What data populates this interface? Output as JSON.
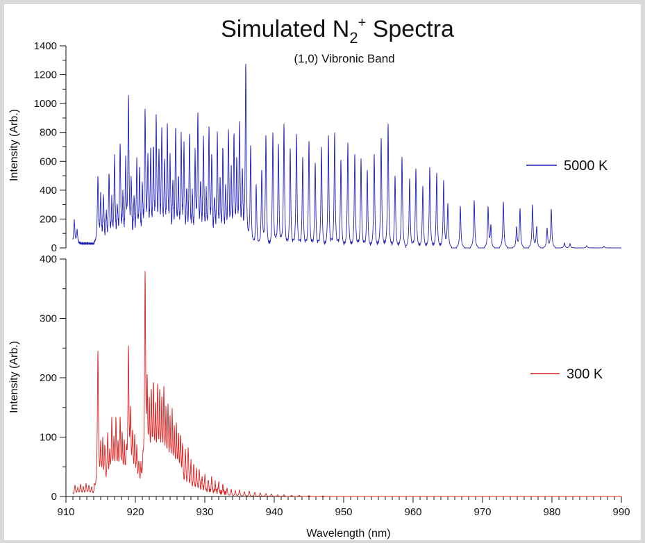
{
  "chart_data": [
    {
      "type": "line",
      "panel": "top",
      "title_main": "Simulated N",
      "title_sub": "2",
      "title_sup": "+",
      "title_tail": " Spectra",
      "subtitle": "(1,0) Vibronic Band",
      "ylabel": "Intensity (Arb.)",
      "xlim": [
        910,
        990
      ],
      "ylim": [
        0,
        1400
      ],
      "y_ticks": [
        "0",
        "200",
        "400",
        "600",
        "800",
        "1000",
        "1200",
        "1400"
      ],
      "series": [
        {
          "name": "5000 K",
          "color": "#1f1fb4",
          "baseline_band": [
            911,
            914.6,
            35
          ],
          "peaks": [
            [
              911.2,
              160
            ],
            [
              911.6,
              90
            ],
            [
              914.6,
              450
            ],
            [
              915.0,
              300
            ],
            [
              915.4,
              330
            ],
            [
              915.8,
              200
            ],
            [
              916.2,
              470
            ],
            [
              916.6,
              260
            ],
            [
              917.0,
              580
            ],
            [
              917.4,
              230
            ],
            [
              917.8,
              690
            ],
            [
              918.2,
              300
            ],
            [
              918.6,
              520
            ],
            [
              919.0,
              990
            ],
            [
              919.4,
              420
            ],
            [
              919.8,
              300
            ],
            [
              920.2,
              540
            ],
            [
              920.6,
              480
            ],
            [
              921.0,
              360
            ],
            [
              921.4,
              910
            ],
            [
              921.8,
              560
            ],
            [
              922.2,
              600
            ],
            [
              922.6,
              610
            ],
            [
              923.0,
              840
            ],
            [
              923.4,
              600
            ],
            [
              923.8,
              760
            ],
            [
              924.2,
              510
            ],
            [
              924.6,
              780
            ],
            [
              925.0,
              560
            ],
            [
              925.4,
              400
            ],
            [
              925.8,
              780
            ],
            [
              926.2,
              400
            ],
            [
              926.6,
              700
            ],
            [
              927.0,
              650
            ],
            [
              927.4,
              340
            ],
            [
              927.8,
              750
            ],
            [
              928.2,
              300
            ],
            [
              928.6,
              580
            ],
            [
              929.0,
              870
            ],
            [
              929.4,
              380
            ],
            [
              929.8,
              720
            ],
            [
              930.2,
              300
            ],
            [
              930.6,
              760
            ],
            [
              931.0,
              580
            ],
            [
              931.4,
              280
            ],
            [
              931.8,
              740
            ],
            [
              932.2,
              380
            ],
            [
              932.6,
              640
            ],
            [
              933.0,
              340
            ],
            [
              933.4,
              780
            ],
            [
              933.8,
              470
            ],
            [
              934.2,
              720
            ],
            [
              934.6,
              520
            ],
            [
              935.0,
              800
            ],
            [
              935.4,
              470
            ],
            [
              935.9,
              1240
            ],
            [
              936.6,
              710
            ],
            [
              937.4,
              440
            ],
            [
              938.2,
              540
            ],
            [
              938.8,
              780
            ],
            [
              939.8,
              800
            ],
            [
              940.6,
              720
            ],
            [
              941.4,
              860
            ],
            [
              942.3,
              690
            ],
            [
              943.2,
              790
            ],
            [
              944.1,
              630
            ],
            [
              945.0,
              740
            ],
            [
              945.9,
              590
            ],
            [
              946.8,
              700
            ],
            [
              947.8,
              780
            ],
            [
              948.7,
              800
            ],
            [
              949.6,
              610
            ],
            [
              950.6,
              730
            ],
            [
              951.6,
              650
            ],
            [
              952.5,
              620
            ],
            [
              953.4,
              540
            ],
            [
              954.4,
              650
            ],
            [
              955.4,
              760
            ],
            [
              956.4,
              860
            ],
            [
              957.4,
              500
            ],
            [
              958.4,
              630
            ],
            [
              959.5,
              480
            ],
            [
              960.4,
              550
            ],
            [
              961.4,
              430
            ],
            [
              962.4,
              560
            ],
            [
              963.4,
              520
            ],
            [
              964.4,
              470
            ],
            [
              965.0,
              310
            ],
            [
              966.8,
              290
            ],
            [
              968.8,
              330
            ],
            [
              970.8,
              280
            ],
            [
              971.2,
              150
            ],
            [
              973.0,
              320
            ],
            [
              974.9,
              140
            ],
            [
              975.4,
              270
            ],
            [
              977.2,
              300
            ],
            [
              977.8,
              150
            ],
            [
              979.3,
              140
            ],
            [
              979.9,
              270
            ],
            [
              981.8,
              35
            ],
            [
              982.6,
              30
            ],
            [
              985.0,
              15
            ],
            [
              987.5,
              12
            ]
          ]
        }
      ]
    },
    {
      "type": "line",
      "panel": "bottom",
      "xlabel": "Wavelength (nm)",
      "ylabel": "Intensity (Arb.)",
      "xlim": [
        910,
        990
      ],
      "ylim": [
        0,
        400
      ],
      "x_ticks": [
        "910",
        "920",
        "930",
        "940",
        "950",
        "960",
        "970",
        "980",
        "990"
      ],
      "y_ticks": [
        "0",
        "100",
        "200",
        "300",
        "400"
      ],
      "series": [
        {
          "name": "300 K",
          "color": "#d92020",
          "baseline_band": [
            911,
            914.6,
            4
          ],
          "peaks": [
            [
              911.3,
              15
            ],
            [
              911.7,
              10
            ],
            [
              912.1,
              16
            ],
            [
              912.5,
              12
            ],
            [
              912.9,
              17
            ],
            [
              913.3,
              14
            ],
            [
              913.7,
              12
            ],
            [
              914.1,
              10
            ],
            [
              914.6,
              238
            ],
            [
              915.0,
              70
            ],
            [
              915.3,
              82
            ],
            [
              915.6,
              75
            ],
            [
              916.0,
              95
            ],
            [
              916.3,
              60
            ],
            [
              916.6,
              115
            ],
            [
              916.9,
              80
            ],
            [
              917.2,
              118
            ],
            [
              917.5,
              70
            ],
            [
              917.8,
              120
            ],
            [
              918.1,
              90
            ],
            [
              918.4,
              80
            ],
            [
              918.7,
              60
            ],
            [
              919.0,
              236
            ],
            [
              919.3,
              120
            ],
            [
              919.6,
              95
            ],
            [
              919.9,
              85
            ],
            [
              920.2,
              70
            ],
            [
              920.5,
              50
            ],
            [
              920.8,
              45
            ],
            [
              921.1,
              40
            ],
            [
              921.4,
              362
            ],
            [
              921.7,
              160
            ],
            [
              922.0,
              140
            ],
            [
              922.3,
              155
            ],
            [
              922.6,
              168
            ],
            [
              922.9,
              130
            ],
            [
              923.2,
              165
            ],
            [
              923.5,
              150
            ],
            [
              923.8,
              140
            ],
            [
              924.1,
              160
            ],
            [
              924.4,
              120
            ],
            [
              924.7,
              135
            ],
            [
              925.0,
              110
            ],
            [
              925.3,
              125
            ],
            [
              925.6,
              100
            ],
            [
              925.9,
              105
            ],
            [
              926.2,
              88
            ],
            [
              926.5,
              90
            ],
            [
              926.8,
              75
            ],
            [
              927.2,
              70
            ],
            [
              927.6,
              75
            ],
            [
              928.0,
              52
            ],
            [
              928.4,
              45
            ],
            [
              928.8,
              38
            ],
            [
              929.2,
              40
            ],
            [
              929.6,
              28
            ],
            [
              930.0,
              30
            ],
            [
              930.5,
              25
            ],
            [
              931.0,
              28
            ],
            [
              931.5,
              18
            ],
            [
              932.0,
              20
            ],
            [
              932.6,
              15
            ],
            [
              933.2,
              14
            ],
            [
              933.8,
              12
            ],
            [
              934.4,
              10
            ],
            [
              935.0,
              11
            ],
            [
              935.7,
              8
            ],
            [
              936.4,
              9
            ],
            [
              937.2,
              7
            ],
            [
              938.0,
              6
            ],
            [
              938.8,
              5
            ],
            [
              939.6,
              4
            ],
            [
              940.5,
              3
            ],
            [
              941.4,
              3
            ],
            [
              942.5,
              2
            ],
            [
              943.6,
              2
            ],
            [
              945.0,
              1.5
            ],
            [
              947.0,
              1
            ]
          ]
        }
      ]
    }
  ]
}
